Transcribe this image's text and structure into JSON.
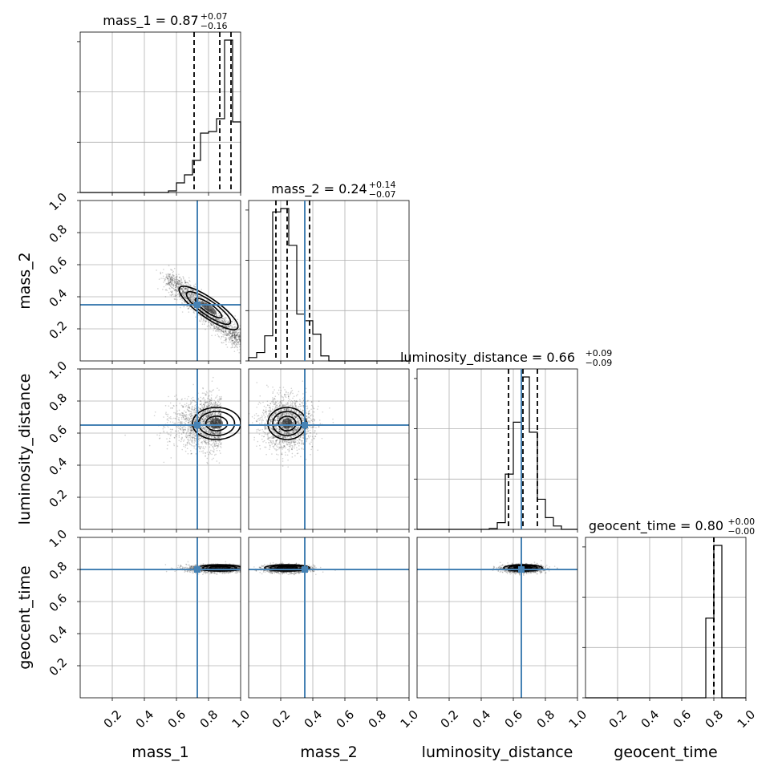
{
  "chart_data": {
    "type": "corner",
    "parameters": [
      {
        "name": "mass_1",
        "median": 0.87,
        "plus": "+0.07",
        "minus": "−0.16",
        "q_lo": 0.71,
        "q_hi": 0.94,
        "truth": 0.73
      },
      {
        "name": "mass_2",
        "median": 0.24,
        "plus": "+0.14",
        "minus": "−0.07",
        "q_lo": 0.17,
        "q_hi": 0.38,
        "truth": 0.35
      },
      {
        "name": "luminosity_distance",
        "median": 0.66,
        "plus": "+0.09",
        "minus": "−0.09",
        "q_lo": 0.57,
        "q_hi": 0.75,
        "truth": 0.65
      },
      {
        "name": "geocent_time",
        "median": 0.8,
        "plus": "+0.00",
        "minus": "−0.00",
        "q_lo": 0.8,
        "q_hi": 0.8,
        "truth": 0.8
      }
    ],
    "titles": [
      {
        "text": "mass_1 = 0.87",
        "sup": "+0.07",
        "sub": "−0.16"
      },
      {
        "text": "mass_2 = 0.24",
        "sup": "+0.14",
        "sub": "−0.07"
      },
      {
        "text": "luminosity_distance = 0.66",
        "sup": "+0.09",
        "sub": "−0.09"
      },
      {
        "text": "geocent_time = 0.80",
        "sup": "+0.00",
        "sub": "−0.00"
      }
    ],
    "xlabels": [
      "mass_1",
      "mass_2",
      "luminosity_distance",
      "geocent_time"
    ],
    "ylabels": [
      "mass_2",
      "luminosity_distance",
      "geocent_time"
    ],
    "axis_range": [
      0,
      1
    ],
    "tick_values": [
      0.2,
      0.4,
      0.6,
      0.8,
      1.0
    ],
    "tick_labels": [
      "0.2",
      "0.4",
      "0.6",
      "0.8",
      "1.0"
    ],
    "grid": true,
    "truth_color": "#4682b4",
    "histograms": [
      {
        "bins": [
          0,
          0.05,
          0.1,
          0.15,
          0.2,
          0.25,
          0.3,
          0.35,
          0.4,
          0.45,
          0.5,
          0.55,
          0.6,
          0.65,
          0.7,
          0.75,
          0.8,
          0.85,
          0.9,
          0.95,
          1.0
        ],
        "counts": [
          0,
          0,
          0,
          0,
          0,
          0,
          0,
          0,
          0,
          0,
          0,
          0.01,
          0.06,
          0.11,
          0.2,
          0.37,
          0.38,
          0.46,
          0.95,
          0.44
        ]
      },
      {
        "bins": [
          0,
          0.05,
          0.1,
          0.15,
          0.2,
          0.25,
          0.3,
          0.35,
          0.4,
          0.45,
          0.5,
          0.55,
          0.6,
          0.65,
          0.7,
          0.75,
          0.8,
          0.85,
          0.9,
          0.95,
          1.0
        ],
        "counts": [
          0.02,
          0.05,
          0.15,
          0.89,
          0.91,
          0.69,
          0.28,
          0.24,
          0.16,
          0.03,
          0,
          0,
          0,
          0,
          0,
          0,
          0,
          0,
          0,
          0
        ]
      },
      {
        "bins": [
          0,
          0.05,
          0.1,
          0.15,
          0.2,
          0.25,
          0.3,
          0.35,
          0.4,
          0.45,
          0.5,
          0.55,
          0.6,
          0.65,
          0.7,
          0.75,
          0.8,
          0.85,
          0.9,
          0.95,
          1.0
        ],
        "counts": [
          0,
          0,
          0,
          0,
          0,
          0,
          0,
          0,
          0,
          0.005,
          0.04,
          0.33,
          0.64,
          0.91,
          0.58,
          0.18,
          0.07,
          0.02,
          0,
          0
        ]
      },
      {
        "bins": [
          0,
          0.05,
          0.1,
          0.15,
          0.2,
          0.25,
          0.3,
          0.35,
          0.4,
          0.45,
          0.5,
          0.55,
          0.6,
          0.65,
          0.7,
          0.75,
          0.8,
          0.85,
          0.9,
          0.95,
          1.0
        ],
        "counts": [
          0,
          0,
          0,
          0,
          0,
          0,
          0,
          0,
          0,
          0,
          0,
          0,
          0,
          0,
          0,
          0.34,
          0.65,
          0,
          0,
          0
        ]
      }
    ],
    "pairs": [
      {
        "x": "mass_1",
        "y": "mass_2",
        "row": 1,
        "col": 0
      },
      {
        "x": "mass_1",
        "y": "luminosity_distance",
        "row": 2,
        "col": 0
      },
      {
        "x": "mass_2",
        "y": "luminosity_distance",
        "row": 2,
        "col": 1
      },
      {
        "x": "mass_1",
        "y": "geocent_time",
        "row": 3,
        "col": 0
      },
      {
        "x": "mass_2",
        "y": "geocent_time",
        "row": 3,
        "col": 1
      },
      {
        "x": "luminosity_distance",
        "y": "geocent_time",
        "row": 3,
        "col": 2
      }
    ]
  }
}
